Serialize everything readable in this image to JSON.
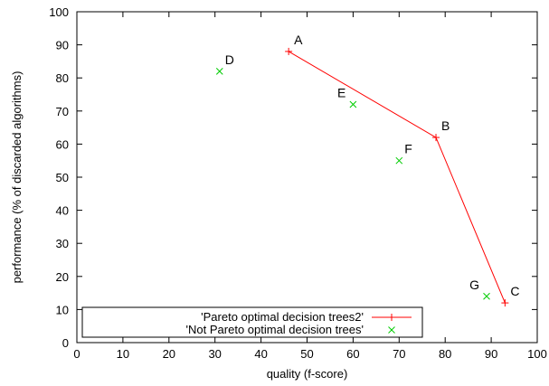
{
  "chart_data": {
    "type": "scatter",
    "xlabel": "quality (f-score)",
    "ylabel": "performance (% of discarded algorithms)",
    "xlim": [
      0,
      100
    ],
    "ylim": [
      0,
      100
    ],
    "xticks": [
      "0",
      "10",
      "20",
      "30",
      "40",
      "50",
      "60",
      "70",
      "80",
      "90",
      "100"
    ],
    "yticks": [
      "0",
      "10",
      "20",
      "30",
      "40",
      "50",
      "60",
      "70",
      "80",
      "90",
      "100"
    ],
    "grid": false,
    "legend_position": "bottom-left",
    "series": [
      {
        "name": "'Pareto optimal decision trees2'",
        "marker": "plus",
        "line": true,
        "color": "#ff0000",
        "points": [
          {
            "label": "A",
            "x": 46,
            "y": 88
          },
          {
            "label": "B",
            "x": 78,
            "y": 62
          },
          {
            "label": "C",
            "x": 93,
            "y": 12
          }
        ]
      },
      {
        "name": "'Not Pareto optimal decision trees'",
        "marker": "cross",
        "line": false,
        "color": "#00cc00",
        "points": [
          {
            "label": "D",
            "x": 31,
            "y": 82
          },
          {
            "label": "E",
            "x": 60,
            "y": 72
          },
          {
            "label": "F",
            "x": 70,
            "y": 55
          },
          {
            "label": "G",
            "x": 89,
            "y": 14
          }
        ]
      }
    ]
  }
}
